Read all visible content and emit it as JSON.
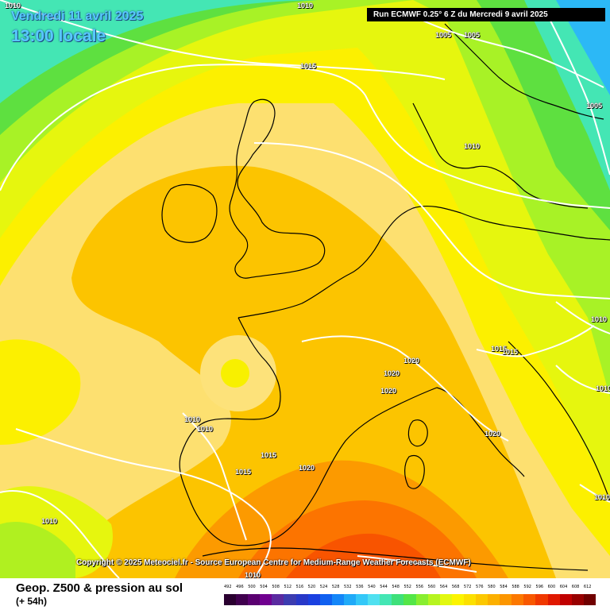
{
  "header": {
    "date": "Vendredi 11 avril 2025",
    "time": "13:00 locale",
    "run": "Run ECMWF 0.25° 6 Z du Mercredi 9 avril 2025"
  },
  "copyright": "Copyright © 2025 Meteociel.fr - Source European Centre for Medium-Range Weather Forecasts (ECMWF)",
  "legend": {
    "title": "Geop. Z500 & pression au sol",
    "subtitle": "(+ 54h)",
    "scale_values": [
      "492",
      "496",
      "500",
      "504",
      "508",
      "512",
      "516",
      "520",
      "524",
      "528",
      "532",
      "536",
      "540",
      "544",
      "548",
      "552",
      "556",
      "560",
      "564",
      "568",
      "572",
      "576",
      "580",
      "584",
      "588",
      "592",
      "596",
      "600",
      "604",
      "608",
      "612"
    ],
    "scale_colors": [
      "#2a0030",
      "#40004e",
      "#5a0070",
      "#700090",
      "#5a2aa0",
      "#3c3cb0",
      "#2838c8",
      "#1a40e0",
      "#1060f0",
      "#1486f8",
      "#20aaf8",
      "#34c8f8",
      "#50e0f0",
      "#44e6b4",
      "#3ee07a",
      "#54e648",
      "#88ee30",
      "#b6f420",
      "#e2f810",
      "#fcf400",
      "#fce000",
      "#fcc800",
      "#fcb000",
      "#fc9600",
      "#fc7800",
      "#f85800",
      "#f03800",
      "#e01800",
      "#c00000",
      "#980000",
      "#700000"
    ]
  },
  "isobars": [
    {
      "label": "1010"
    },
    {
      "label": "1010"
    },
    {
      "label": "1015"
    },
    {
      "label": "1005"
    },
    {
      "label": "1005"
    },
    {
      "label": "1005"
    },
    {
      "label": "1010"
    },
    {
      "label": "1020"
    },
    {
      "label": "1020"
    },
    {
      "label": "1020"
    },
    {
      "label": "1015"
    },
    {
      "label": "1015"
    },
    {
      "label": "1010"
    },
    {
      "label": "1010"
    },
    {
      "label": "1015"
    },
    {
      "label": "1015"
    },
    {
      "label": "1020"
    },
    {
      "label": "1020"
    },
    {
      "label": "1010"
    },
    {
      "label": "1010"
    },
    {
      "label": "1010"
    },
    {
      "label": "1010"
    },
    {
      "label": "1010"
    }
  ]
}
